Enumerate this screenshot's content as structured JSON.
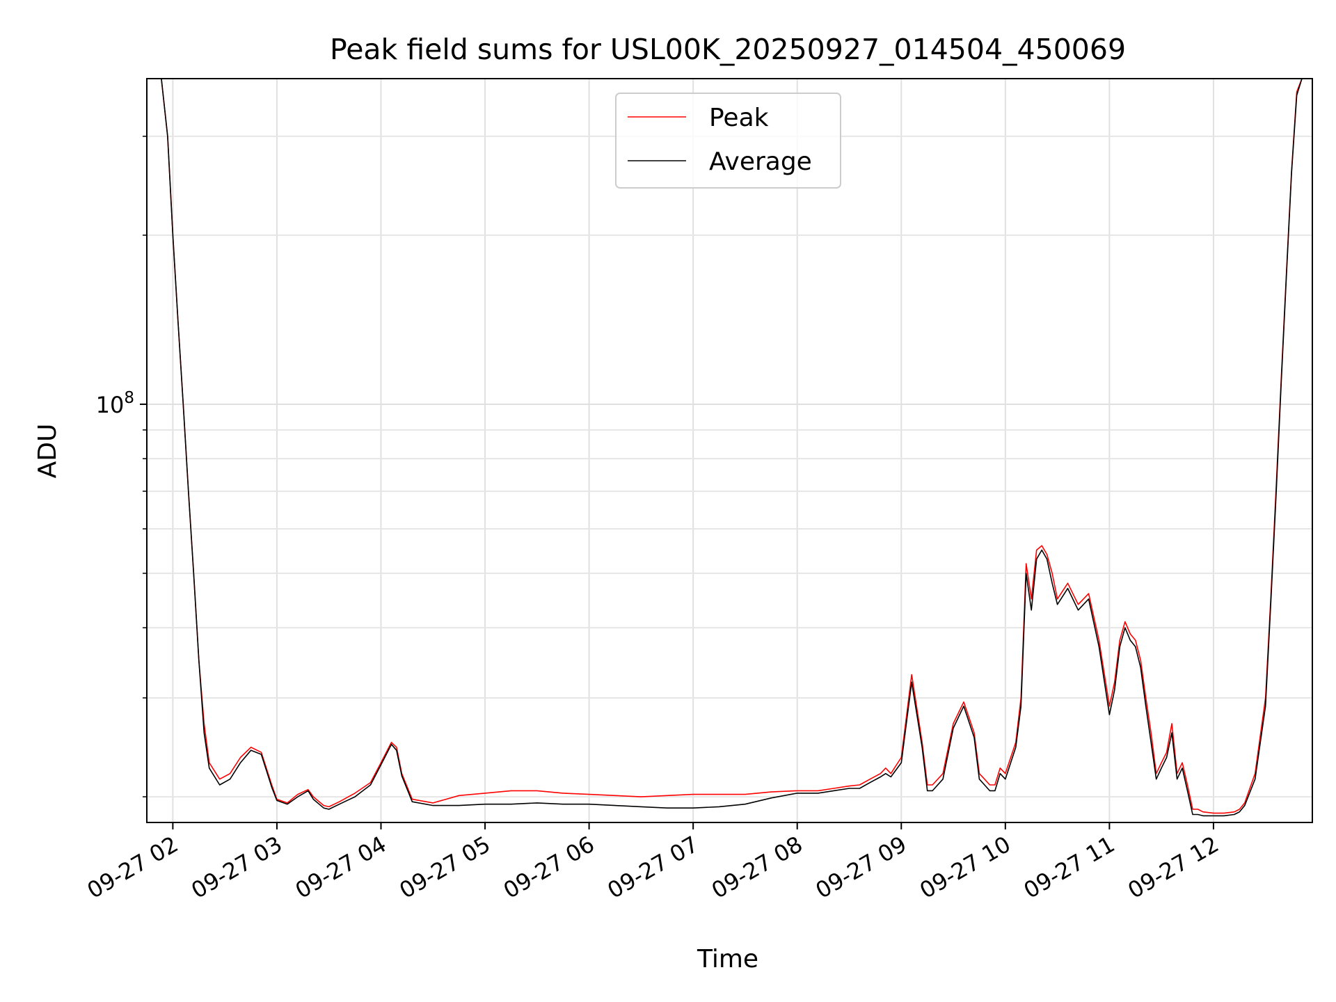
{
  "chart_data": {
    "type": "line",
    "title": "Peak field sums for USL00K_20250927_014504_450069",
    "xlabel": "Time",
    "ylabel": "ADU",
    "yscale": "log",
    "ylim": [
      18000000,
      380000000
    ],
    "grid": true,
    "legend_position": "top-center",
    "x_unit": "hours since 09-27 00:00",
    "xlim": [
      1.75,
      12.95
    ],
    "x_ticks": [
      {
        "value": 2,
        "label": "09-27 02"
      },
      {
        "value": 3,
        "label": "09-27 03"
      },
      {
        "value": 4,
        "label": "09-27 04"
      },
      {
        "value": 5,
        "label": "09-27 05"
      },
      {
        "value": 6,
        "label": "09-27 06"
      },
      {
        "value": 7,
        "label": "09-27 07"
      },
      {
        "value": 8,
        "label": "09-27 08"
      },
      {
        "value": 9,
        "label": "09-27 09"
      },
      {
        "value": 10,
        "label": "09-27 10"
      },
      {
        "value": 11,
        "label": "09-27 11"
      },
      {
        "value": 12,
        "label": "09-27 12"
      }
    ],
    "y_ticks": [
      {
        "value": 100000000,
        "base": "10",
        "exp": "8"
      }
    ],
    "y_minor_ticks": [
      20000000,
      30000000,
      40000000,
      50000000,
      60000000,
      70000000,
      80000000,
      90000000,
      200000000,
      300000000
    ],
    "series": [
      {
        "name": "Peak",
        "color": "#ff0000",
        "x": [
          1.75,
          1.89,
          1.95,
          2.0,
          2.05,
          2.1,
          2.15,
          2.2,
          2.25,
          2.3,
          2.35,
          2.45,
          2.55,
          2.65,
          2.75,
          2.85,
          2.95,
          3.0,
          3.1,
          3.2,
          3.3,
          3.35,
          3.45,
          3.5,
          3.6,
          3.75,
          3.9,
          4.0,
          4.1,
          4.15,
          4.2,
          4.3,
          4.5,
          4.75,
          5.0,
          5.25,
          5.5,
          5.75,
          6.0,
          6.25,
          6.5,
          6.75,
          7.0,
          7.25,
          7.5,
          7.75,
          8.0,
          8.2,
          8.35,
          8.5,
          8.6,
          8.7,
          8.8,
          8.85,
          8.9,
          9.0,
          9.1,
          9.2,
          9.25,
          9.3,
          9.4,
          9.5,
          9.6,
          9.7,
          9.75,
          9.8,
          9.85,
          9.9,
          9.95,
          10.0,
          10.1,
          10.15,
          10.2,
          10.25,
          10.3,
          10.35,
          10.4,
          10.45,
          10.5,
          10.6,
          10.7,
          10.8,
          10.9,
          11.0,
          11.05,
          11.1,
          11.15,
          11.2,
          11.25,
          11.3,
          11.35,
          11.4,
          11.45,
          11.5,
          11.55,
          11.6,
          11.65,
          11.7,
          11.75,
          11.8,
          11.85,
          11.9,
          12.0,
          12.1,
          12.2,
          12.25,
          12.3,
          12.4,
          12.5,
          12.55,
          12.6,
          12.65,
          12.7,
          12.75,
          12.8,
          12.85,
          12.95
        ],
        "values": [
          380000000,
          380000000,
          300000000,
          200000000,
          140000000,
          100000000,
          70000000,
          50000000,
          35000000,
          27000000,
          23000000,
          21500000,
          22000000,
          23500000,
          24500000,
          24000000,
          21000000,
          19800000,
          19500000,
          20200000,
          20600000,
          20000000,
          19300000,
          19200000,
          19600000,
          20300000,
          21200000,
          23000000,
          25000000,
          24500000,
          22000000,
          19800000,
          19500000,
          20100000,
          20300000,
          20500000,
          20500000,
          20300000,
          20200000,
          20100000,
          20000000,
          20100000,
          20200000,
          20200000,
          20200000,
          20400000,
          20500000,
          20500000,
          20700000,
          20900000,
          21000000,
          21500000,
          22000000,
          22500000,
          22000000,
          23500000,
          33000000,
          25000000,
          21000000,
          21000000,
          22000000,
          27000000,
          29500000,
          26000000,
          22000000,
          21500000,
          21000000,
          21000000,
          22500000,
          22000000,
          25000000,
          30000000,
          52000000,
          45000000,
          55000000,
          56000000,
          54000000,
          50000000,
          45000000,
          48000000,
          44000000,
          46000000,
          38000000,
          29000000,
          32000000,
          38000000,
          41000000,
          39000000,
          38000000,
          35000000,
          30000000,
          26000000,
          22000000,
          23000000,
          24000000,
          27000000,
          22000000,
          23000000,
          21000000,
          19000000,
          19000000,
          18800000,
          18700000,
          18700000,
          18800000,
          19000000,
          19500000,
          22000000,
          30000000,
          45000000,
          70000000,
          110000000,
          170000000,
          260000000,
          360000000,
          380000000,
          380000000
        ]
      },
      {
        "name": "Average",
        "color": "#000000",
        "x": [
          1.75,
          1.89,
          1.95,
          2.0,
          2.05,
          2.1,
          2.15,
          2.2,
          2.25,
          2.3,
          2.35,
          2.45,
          2.55,
          2.65,
          2.75,
          2.85,
          2.95,
          3.0,
          3.1,
          3.2,
          3.3,
          3.35,
          3.45,
          3.5,
          3.6,
          3.75,
          3.9,
          4.0,
          4.1,
          4.15,
          4.2,
          4.3,
          4.5,
          4.75,
          5.0,
          5.25,
          5.5,
          5.75,
          6.0,
          6.25,
          6.5,
          6.75,
          7.0,
          7.25,
          7.5,
          7.75,
          8.0,
          8.2,
          8.35,
          8.5,
          8.6,
          8.7,
          8.8,
          8.85,
          8.9,
          9.0,
          9.1,
          9.2,
          9.25,
          9.3,
          9.4,
          9.5,
          9.6,
          9.7,
          9.75,
          9.8,
          9.85,
          9.9,
          9.95,
          10.0,
          10.1,
          10.15,
          10.2,
          10.25,
          10.3,
          10.35,
          10.4,
          10.45,
          10.5,
          10.6,
          10.7,
          10.8,
          10.9,
          11.0,
          11.05,
          11.1,
          11.15,
          11.2,
          11.25,
          11.3,
          11.35,
          11.4,
          11.45,
          11.5,
          11.55,
          11.6,
          11.65,
          11.7,
          11.75,
          11.8,
          11.85,
          11.9,
          12.0,
          12.1,
          12.2,
          12.25,
          12.3,
          12.4,
          12.5,
          12.55,
          12.6,
          12.65,
          12.7,
          12.75,
          12.8,
          12.85,
          12.95
        ],
        "values": [
          380000000,
          380000000,
          300000000,
          200000000,
          140000000,
          100000000,
          70000000,
          50000000,
          35000000,
          26000000,
          22500000,
          21000000,
          21500000,
          23000000,
          24200000,
          23800000,
          20800000,
          19700000,
          19400000,
          20000000,
          20500000,
          19800000,
          19100000,
          19000000,
          19400000,
          20000000,
          21000000,
          22800000,
          24800000,
          24200000,
          21800000,
          19600000,
          19300000,
          19300000,
          19400000,
          19400000,
          19500000,
          19400000,
          19400000,
          19300000,
          19200000,
          19100000,
          19100000,
          19200000,
          19400000,
          19900000,
          20300000,
          20300000,
          20500000,
          20700000,
          20700000,
          21200000,
          21700000,
          22000000,
          21700000,
          23000000,
          32000000,
          24500000,
          20500000,
          20500000,
          21500000,
          26500000,
          29000000,
          25500000,
          21500000,
          21000000,
          20500000,
          20500000,
          22000000,
          21500000,
          24500000,
          29000000,
          50000000,
          43000000,
          53000000,
          55000000,
          53000000,
          48000000,
          44000000,
          47000000,
          43000000,
          45000000,
          37000000,
          28000000,
          31000000,
          37000000,
          40000000,
          38000000,
          37000000,
          34000000,
          29000000,
          25000000,
          21500000,
          22500000,
          23500000,
          26000000,
          21500000,
          22500000,
          20500000,
          18600000,
          18600000,
          18500000,
          18500000,
          18500000,
          18600000,
          18800000,
          19300000,
          21500000,
          29000000,
          44000000,
          68000000,
          108000000,
          168000000,
          258000000,
          355000000,
          380000000,
          380000000
        ]
      }
    ]
  }
}
